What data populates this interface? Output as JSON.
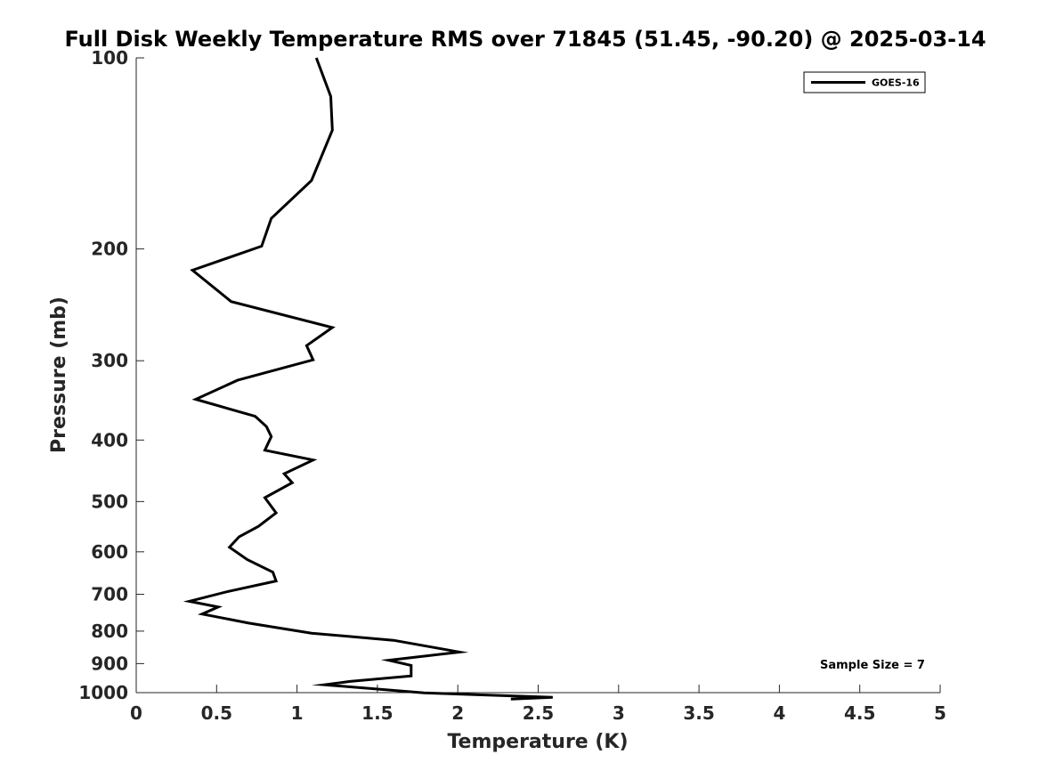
{
  "chart_data": {
    "type": "line",
    "title": "Full Disk Weekly Temperature RMS over 71845 (51.45, -90.20) @ 2025-03-14",
    "xlabel": "Temperature (K)",
    "ylabel": "Pressure (mb)",
    "xlim": [
      0,
      5
    ],
    "ylim": [
      100,
      1000
    ],
    "y_scale": "log",
    "y_direction": "reversed",
    "x_ticks": [
      0,
      0.5,
      1,
      1.5,
      2,
      2.5,
      3,
      3.5,
      4,
      4.5,
      5
    ],
    "x_tick_labels": [
      "0",
      "0.5",
      "1",
      "1.5",
      "2",
      "2.5",
      "3",
      "3.5",
      "4",
      "4.5",
      "5"
    ],
    "y_ticks": [
      100,
      200,
      300,
      400,
      500,
      600,
      700,
      800,
      900,
      1000
    ],
    "y_tick_labels": [
      "100",
      "200",
      "300",
      "400",
      "500",
      "600",
      "700",
      "800",
      "900",
      "1000"
    ],
    "grid": false,
    "legend_position": "top-right",
    "annotation": "Sample Size = 7",
    "series": [
      {
        "name": "GOES-16",
        "color": "#000000",
        "x": [
          1.12,
          1.21,
          1.22,
          1.09,
          0.84,
          0.78,
          0.35,
          0.59,
          1.22,
          1.06,
          1.1,
          0.63,
          0.37,
          0.74,
          0.81,
          0.84,
          0.8,
          1.1,
          0.92,
          0.97,
          0.8,
          0.87,
          0.76,
          0.64,
          0.58,
          0.69,
          0.85,
          0.87,
          0.57,
          0.33,
          0.51,
          0.41,
          0.7,
          1.09,
          1.6,
          2.01,
          1.57,
          1.71,
          1.71,
          1.33,
          1.17,
          1.79,
          2.59,
          2.33
        ],
        "y": [
          100,
          115,
          130,
          156,
          179,
          198,
          216,
          242,
          266,
          284,
          299,
          322,
          345,
          367,
          381,
          395,
          415,
          430,
          452,
          467,
          493,
          521,
          547,
          568,
          590,
          617,
          646,
          667,
          693,
          718,
          733,
          752,
          777,
          806,
          827,
          863,
          889,
          906,
          941,
          960,
          972,
          1001,
          1017,
          1024
        ]
      }
    ]
  }
}
